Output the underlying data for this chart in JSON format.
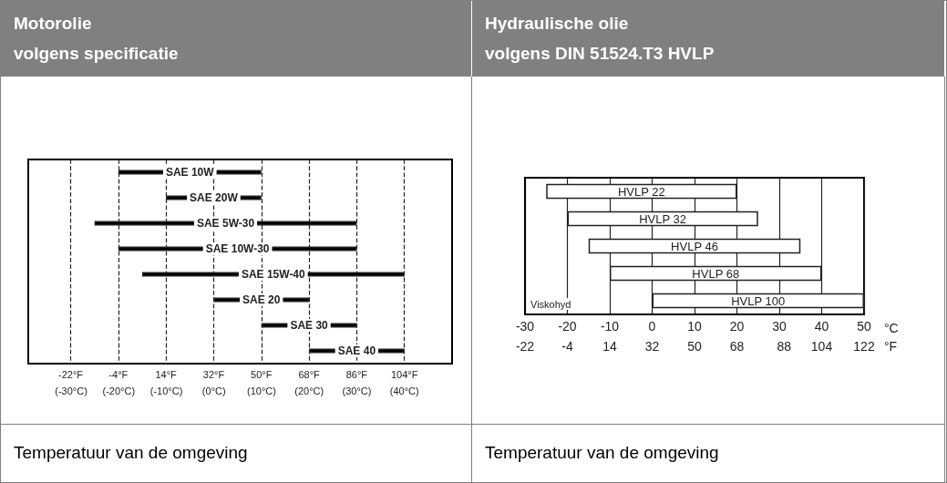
{
  "chart_data": [
    {
      "type": "bar",
      "title": "Motorolie\nvolgens specificatie",
      "xlabel": "Temperatuur van de omgeving",
      "orientation": "horizontal",
      "categories": [
        "SAE 10W",
        "SAE 20W",
        "SAE 5W-30",
        "SAE 10W-30",
        "SAE 15W-40",
        "SAE 20",
        "SAE 30",
        "SAE 40"
      ],
      "base": [
        -4,
        14,
        -13,
        -4,
        5,
        32,
        50,
        68
      ],
      "values": [
        54,
        36,
        99,
        90,
        99,
        36,
        36,
        36
      ],
      "color": "#000000",
      "xlim": [
        -38,
        122
      ],
      "xticks": [
        {
          "value": -22,
          "label": "-22°F"
        },
        {
          "value": -4,
          "label": "-4°F"
        },
        {
          "value": 14,
          "label": "14°F"
        },
        {
          "value": 32,
          "label": "32°F"
        },
        {
          "value": 50,
          "label": "50°F"
        },
        {
          "value": 68,
          "label": "68°F"
        },
        {
          "value": 86,
          "label": "86°F"
        },
        {
          "value": 104,
          "label": "104°F"
        }
      ],
      "x2lim": [
        -39,
        50
      ],
      "x2ticks": [
        {
          "value": -30,
          "label": "(-30°C)"
        },
        {
          "value": -20,
          "label": "(-20°C)"
        },
        {
          "value": -10,
          "label": "(-10°C)"
        },
        {
          "value": 0,
          "label": "(0°C)"
        },
        {
          "value": 10,
          "label": "(10°C)"
        },
        {
          "value": 20,
          "label": "(20°C)"
        },
        {
          "value": 30,
          "label": "(30°C)"
        },
        {
          "value": 40,
          "label": "(40°C)"
        }
      ],
      "grid": "x",
      "tick_labels": "x"
    },
    {
      "type": "bar",
      "title": "Hydraulische olie\nvolgens DIN 51524.T3 HVLP",
      "xlabel": "Temperatuur van de omgeving",
      "orientation": "horizontal",
      "categories": [
        "HVLP 22",
        "HVLP 32",
        "HVLP 46",
        "HVLP 68",
        "HVLP 100"
      ],
      "base": [
        -25,
        -20,
        -15,
        -10,
        0
      ],
      "values": [
        45,
        45,
        50,
        50,
        50
      ],
      "color": "#ffffff",
      "xlim": [
        -30,
        50
      ],
      "xticks": [
        -30,
        -20,
        -10,
        0,
        10,
        20,
        30,
        40,
        50
      ],
      "x2lim": [
        -22,
        122
      ],
      "x2ticks": [
        -22,
        -4,
        14,
        32,
        50,
        68,
        88,
        104,
        122
      ],
      "annotations": [
        "Viskohyd",
        "°C",
        "°F"
      ],
      "grid": "x",
      "tick_labels": "x"
    }
  ]
}
